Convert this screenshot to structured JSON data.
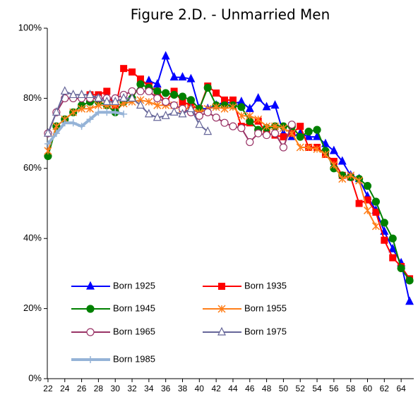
{
  "chart_data": {
    "type": "line",
    "title": "Figure 2.D. - Unmarried Men",
    "x": [
      22,
      23,
      24,
      25,
      26,
      27,
      28,
      29,
      30,
      31,
      32,
      33,
      34,
      35,
      36,
      37,
      38,
      39,
      40,
      41,
      42,
      43,
      44,
      45,
      46,
      47,
      48,
      49,
      50,
      51,
      52,
      53,
      54,
      55,
      56,
      57,
      58,
      59,
      60,
      61,
      62,
      63,
      64,
      65
    ],
    "xlim": [
      21.5,
      65.5
    ],
    "xticks": [
      22,
      24,
      26,
      28,
      30,
      32,
      34,
      36,
      38,
      40,
      42,
      44,
      46,
      48,
      50,
      52,
      54,
      56,
      58,
      60,
      62,
      64
    ],
    "ylim": [
      0,
      100
    ],
    "yticks": [
      {
        "value": 0,
        "label": "0%"
      },
      {
        "value": 20,
        "label": "20%"
      },
      {
        "value": 40,
        "label": "40%"
      },
      {
        "value": 60,
        "label": "60%"
      },
      {
        "value": 80,
        "label": "80%"
      },
      {
        "value": 100,
        "label": "100%"
      }
    ],
    "grid": false,
    "legend": "lower-left",
    "series": [
      {
        "name": "Born 1925",
        "color": "#0000ff",
        "marker": "triangle",
        "values": [
          null,
          null,
          null,
          null,
          null,
          null,
          null,
          null,
          null,
          null,
          null,
          null,
          85,
          84,
          92,
          86,
          86,
          85.5,
          77,
          77,
          78,
          79,
          78.5,
          79,
          77,
          80,
          77.5,
          78,
          70,
          69,
          70,
          69,
          69,
          67,
          65,
          62,
          58,
          57,
          52,
          48,
          42,
          37,
          33,
          22
        ]
      },
      {
        "name": "Born 1935",
        "color": "#ff0000",
        "marker": "square",
        "values": [
          null,
          null,
          null,
          null,
          null,
          81,
          81,
          82,
          77,
          88.5,
          87.5,
          85.5,
          83.5,
          82,
          79,
          82,
          79,
          78,
          77,
          83.5,
          81.5,
          79.5,
          79.5,
          72,
          73,
          73.5,
          70,
          69.5,
          69,
          70,
          72,
          66,
          66,
          64,
          62,
          58,
          57.5,
          50,
          51,
          47.5,
          39.5,
          34.5,
          32,
          28.5
        ]
      },
      {
        "name": "Born 1945",
        "color": "#008000",
        "marker": "circle",
        "values": [
          63.5,
          72,
          74,
          76,
          78,
          79,
          79,
          78,
          76,
          79,
          80,
          84,
          83,
          82,
          81.5,
          81,
          80.5,
          79.5,
          77,
          83,
          78,
          78,
          78,
          77.5,
          73.5,
          71,
          71.5,
          72,
          72,
          72,
          69,
          70.5,
          71,
          65,
          60,
          58,
          57.5,
          57,
          55,
          50.5,
          44.5,
          40,
          31.5,
          28
        ]
      },
      {
        "name": "Born 1955",
        "color": "#ff7f1a",
        "marker": "asterisk",
        "values": [
          65,
          72,
          74,
          76,
          77,
          77,
          78,
          78,
          78,
          78.5,
          79,
          79.5,
          79,
          78,
          78,
          78,
          77,
          77,
          76,
          77,
          77.5,
          77,
          77.5,
          75,
          75,
          74,
          72,
          72,
          71.5,
          70,
          66,
          66,
          65.5,
          64,
          61,
          57,
          58,
          56.5,
          48,
          43.5,
          null,
          null,
          null,
          null
        ]
      },
      {
        "name": "Born 1965",
        "color": "#993366",
        "marker": "open-circle",
        "values": [
          70,
          76,
          80,
          80,
          80,
          80,
          80,
          80,
          80,
          81,
          82,
          82,
          82,
          80,
          79,
          78,
          77,
          76,
          75,
          76,
          74.5,
          73,
          72,
          71.5,
          67.5,
          70,
          69.5,
          70,
          66,
          72.5,
          null,
          null,
          null,
          null,
          null,
          null,
          null,
          null,
          null,
          null,
          null,
          null,
          null,
          null
        ]
      },
      {
        "name": "Born 1975",
        "color": "#666699",
        "marker": "open-triangle",
        "values": [
          70,
          76,
          82,
          81,
          81,
          81,
          80,
          79,
          79,
          80,
          80,
          78,
          75.5,
          74.5,
          75,
          76,
          75.5,
          77,
          72.5,
          70.5,
          null,
          null,
          null,
          null,
          null,
          null,
          null,
          null,
          null,
          null,
          null,
          null,
          null,
          null,
          null,
          null,
          null,
          null,
          null,
          null,
          null,
          null,
          null,
          null
        ]
      },
      {
        "name": "Born 1985",
        "color": "#95b3d7",
        "marker": "plus",
        "values": [
          67,
          70,
          73,
          73,
          72,
          74,
          76,
          76,
          76,
          75.5,
          null,
          null,
          null,
          null,
          null,
          null,
          null,
          null,
          null,
          null,
          null,
          null,
          null,
          null,
          null,
          null,
          null,
          null,
          null,
          null,
          null,
          null,
          null,
          null,
          null,
          null,
          null,
          null,
          null,
          null,
          null,
          null,
          null,
          null
        ]
      }
    ]
  }
}
